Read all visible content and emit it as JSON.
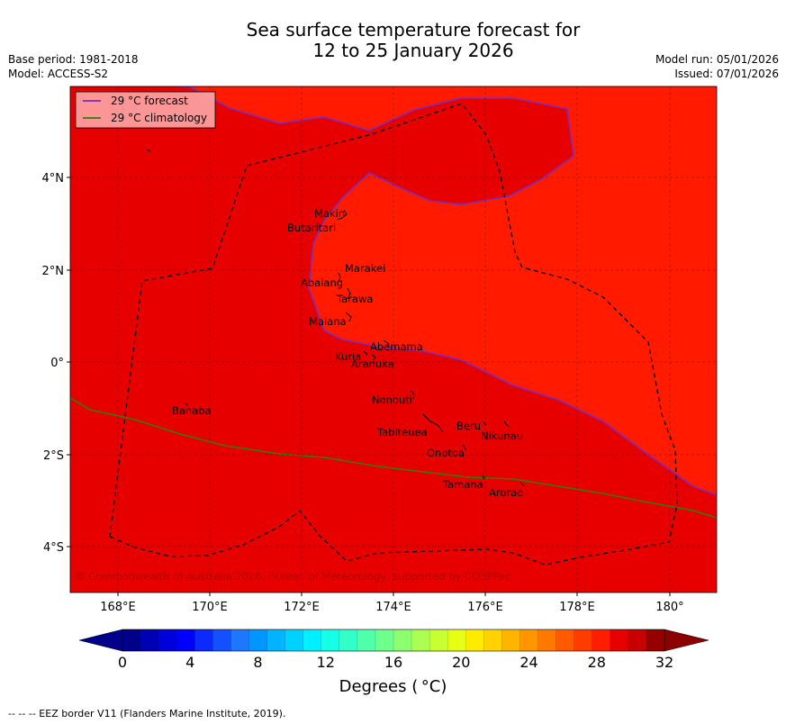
{
  "title_line1": "Sea surface temperature forecast for",
  "title_line2": "12 to 25 January 2026",
  "base_period": "Base period: 1981-2018",
  "model": "Model: ACCESS-S2",
  "model_run": "Model run: 05/01/2026",
  "issued": "Issued: 07/01/2026",
  "legend": {
    "forecast": "29 °C  forecast",
    "climatology": "29 °C  climatology",
    "forecast_color": "#7b2cbf",
    "climatology_color": "#2e7d0f"
  },
  "copyright": "© Commonwealth of Australia 2026, Bureau of Meteorology, supported by COSPPac",
  "colors": {
    "warm_region": "#ff1a00",
    "hot_region": "#e60000",
    "eez": "#000000"
  },
  "x_ticks": [
    "168°E",
    "170°E",
    "172°E",
    "174°E",
    "176°E",
    "178°E",
    "180°"
  ],
  "y_ticks": [
    "4°N",
    "2°N",
    "0°",
    "2°S",
    "4°S"
  ],
  "islands": [
    "Makin",
    "Butaritari",
    "Marakei",
    "Abaiang",
    "Tarawa",
    "Maiana",
    "Abemama",
    "Kuria",
    "Aranuka",
    "Nonouti",
    "Banaba",
    "Beru",
    "Nikunau",
    "Tabiteuea",
    "Onotoa",
    "Tamana",
    "Arorae"
  ],
  "colorbar": {
    "tick_labels": [
      "0",
      "4",
      "8",
      "12",
      "16",
      "20",
      "24",
      "28",
      "32"
    ],
    "label": "Degrees ( °C)",
    "colors": [
      "#00008b",
      "#0000b4",
      "#0000dc",
      "#0000ff",
      "#0a2aff",
      "#1450ff",
      "#1e78ff",
      "#0096ff",
      "#00b4ff",
      "#00d2ff",
      "#00f0ff",
      "#14ffe6",
      "#32ffc8",
      "#50ffaa",
      "#6eff8c",
      "#8cff6e",
      "#aaff50",
      "#c8ff32",
      "#e6ff14",
      "#ffeb00",
      "#ffd200",
      "#ffb400",
      "#ff9600",
      "#ff7800",
      "#ff5a00",
      "#ff3c00",
      "#ff1e00",
      "#e60000",
      "#c80000",
      "#960000"
    ],
    "under_color": "#00008b",
    "over_color": "#8b0000"
  },
  "footer": "--  --  -- EEZ border V11 (Flanders Marine Institute, 2019)."
}
